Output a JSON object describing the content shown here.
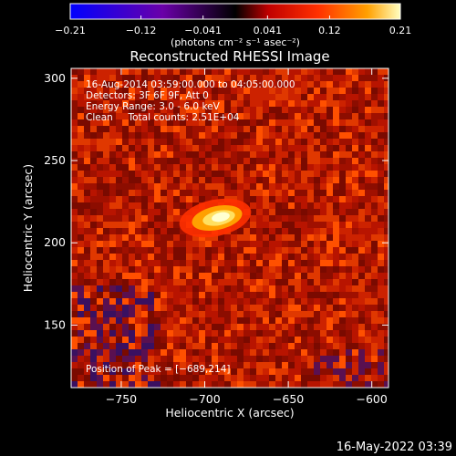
{
  "chart_data": {
    "type": "heatmap",
    "title": "Reconstructed RHESSI Image",
    "xlabel": "Heliocentric X (arcsec)",
    "ylabel": "Heliocentric Y (arcsec)",
    "xlim": [
      -780,
      -590
    ],
    "ylim": [
      112,
      306
    ],
    "xticks": [
      -750,
      -700,
      -650,
      -600
    ],
    "xtick_labels": [
      "−750",
      "−700",
      "−650",
      "−600"
    ],
    "yticks": [
      150,
      200,
      250,
      300
    ],
    "ytick_labels": [
      "150",
      "200",
      "250",
      "300"
    ],
    "colorbar": {
      "range": [
        -0.21,
        0.21
      ],
      "ticks": [
        -0.21,
        -0.12,
        -0.041,
        0.041,
        0.12,
        0.21
      ],
      "tick_labels": [
        "−0.21",
        "−0.12",
        "−0.041",
        "0.041",
        "0.12",
        "0.21"
      ],
      "unit_label": "(photons cm⁻² s⁻¹ asec⁻²)",
      "colors": [
        "#0000ff",
        "#6a00a8",
        "#000000",
        "#c00000",
        "#ff3000",
        "#ffa000",
        "#ffffc0"
      ]
    },
    "peak": {
      "x": -689,
      "y": 214,
      "value": 0.21
    },
    "annotations": [
      "16-Aug-2014 03:59:00.000 to 04:05:00.000",
      "Detectors: 3F 6F 9F, Att 0",
      "Energy Range: 3.0 - 6.0 keV",
      "Clean     Total counts: 2.51E+04"
    ],
    "peak_label": "Position of Peak = [−689,214]",
    "grid": false
  },
  "footer": {
    "timestamp": "16-May-2022 03:39"
  }
}
